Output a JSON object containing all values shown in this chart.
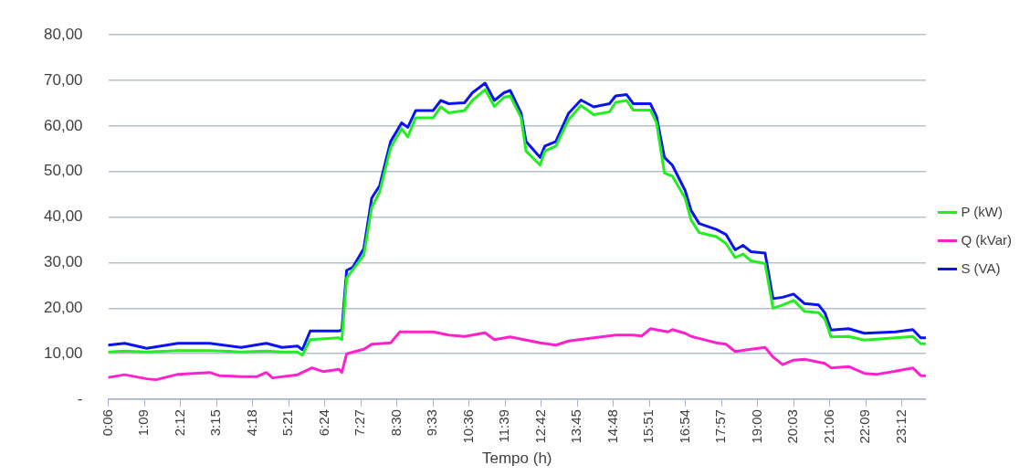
{
  "chart_data": {
    "type": "line",
    "xlabel": "Tempo (h)",
    "xlim": [
      0.1,
      23.9
    ],
    "xticks": [
      {
        "value": 0.1,
        "label": "0:06"
      },
      {
        "value": 1.15,
        "label": "1:09"
      },
      {
        "value": 2.2,
        "label": "2:12"
      },
      {
        "value": 3.25,
        "label": "3:15"
      },
      {
        "value": 4.3,
        "label": "4:18"
      },
      {
        "value": 5.35,
        "label": "5:21"
      },
      {
        "value": 6.4,
        "label": "6:24"
      },
      {
        "value": 7.45,
        "label": "7:27"
      },
      {
        "value": 8.5,
        "label": "8:30"
      },
      {
        "value": 9.55,
        "label": "9:33"
      },
      {
        "value": 10.6,
        "label": "10:36"
      },
      {
        "value": 11.65,
        "label": "11:39"
      },
      {
        "value": 12.7,
        "label": "12:42"
      },
      {
        "value": 13.75,
        "label": "13:45"
      },
      {
        "value": 14.8,
        "label": "14:48"
      },
      {
        "value": 15.85,
        "label": "15:51"
      },
      {
        "value": 16.9,
        "label": "16:54"
      },
      {
        "value": 17.95,
        "label": "17:57"
      },
      {
        "value": 19,
        "label": "19:00"
      },
      {
        "value": 20.05,
        "label": "20:03"
      },
      {
        "value": 21.1,
        "label": "21:06"
      },
      {
        "value": 22.15,
        "label": "22:09"
      },
      {
        "value": 23.2,
        "label": "23:12"
      }
    ],
    "ylim": [
      0,
      80
    ],
    "yticks": [
      {
        "value": 0,
        "label": "-"
      },
      {
        "value": 10,
        "label": "10,00"
      },
      {
        "value": 20,
        "label": "20,00"
      },
      {
        "value": 30,
        "label": "30,00"
      },
      {
        "value": 40,
        "label": "40,00"
      },
      {
        "value": 50,
        "label": "50,00"
      },
      {
        "value": 60,
        "label": "60,00"
      },
      {
        "value": 70,
        "label": "70,00"
      },
      {
        "value": 80,
        "label": "80,00"
      }
    ],
    "grid": "y",
    "legend": "right",
    "marker": "none",
    "line_style": "solid",
    "series": [
      {
        "name": "P (kW)",
        "color": "#22ee22",
        "x": [
          0.1,
          0.58,
          1.22,
          2.13,
          3.05,
          3.97,
          4.7,
          5.16,
          5.61,
          5.75,
          5.98,
          6.81,
          6.9,
          7.04,
          7.54,
          7.77,
          8.0,
          8.32,
          8.64,
          8.82,
          9.05,
          9.56,
          9.78,
          10.01,
          10.47,
          10.7,
          11.07,
          11.34,
          11.62,
          11.8,
          12.12,
          12.26,
          12.67,
          12.81,
          13.13,
          13.5,
          13.86,
          14.23,
          14.69,
          14.87,
          15.19,
          15.38,
          15.88,
          16.06,
          16.29,
          16.52,
          16.89,
          17.07,
          17.3,
          17.8,
          18.08,
          18.35,
          18.58,
          18.81,
          19.22,
          19.45,
          19.73,
          20.05,
          20.37,
          20.78,
          20.96,
          21.14,
          21.65,
          22.11,
          23.02,
          23.52,
          23.75,
          23.9
        ],
        "values": [
          10.4,
          10.6,
          10.4,
          10.7,
          10.7,
          10.4,
          10.6,
          10.4,
          10.4,
          9.7,
          13.1,
          13.5,
          13.1,
          26.6,
          31.7,
          42.1,
          45.5,
          55.2,
          59.4,
          57.6,
          61.8,
          61.8,
          64.2,
          62.9,
          63.4,
          65.6,
          68.0,
          64.3,
          66.3,
          66.6,
          61.8,
          54.5,
          51.4,
          54.5,
          55.6,
          61.4,
          64.5,
          62.5,
          63.1,
          65.2,
          65.6,
          63.5,
          63.5,
          60.7,
          49.7,
          49.0,
          44.2,
          39.3,
          36.6,
          35.7,
          34.2,
          31.1,
          31.9,
          30.4,
          29.8,
          20.0,
          20.7,
          21.7,
          19.3,
          19.0,
          17.6,
          13.7,
          13.8,
          13.0,
          13.5,
          13.8,
          12.2,
          12.2
        ]
      },
      {
        "name": "Q (kVar)",
        "color": "#ff22cc",
        "x": [
          0.1,
          0.58,
          1.22,
          1.49,
          2.13,
          3.05,
          3.33,
          3.97,
          4.43,
          4.7,
          4.88,
          5.61,
          6.03,
          6.35,
          6.81,
          6.9,
          7.04,
          7.54,
          7.77,
          8.32,
          8.59,
          9.56,
          10.01,
          10.47,
          11.07,
          11.34,
          11.8,
          12.67,
          13.13,
          13.5,
          14.23,
          14.87,
          15.38,
          15.63,
          15.88,
          16.4,
          16.52,
          16.89,
          17.07,
          17.8,
          18.08,
          18.35,
          18.81,
          19.22,
          19.45,
          19.73,
          20.05,
          20.37,
          20.96,
          21.14,
          21.65,
          22.11,
          22.48,
          23.02,
          23.52,
          23.75,
          23.9
        ],
        "values": [
          4.8,
          5.4,
          4.5,
          4.3,
          5.5,
          5.9,
          5.2,
          5.0,
          5.0,
          5.9,
          4.7,
          5.4,
          6.9,
          6.1,
          6.6,
          5.9,
          10.0,
          11.0,
          12.1,
          12.4,
          14.8,
          14.8,
          14.1,
          13.8,
          14.6,
          13.1,
          13.7,
          12.4,
          11.9,
          12.8,
          13.5,
          14.1,
          14.1,
          13.9,
          15.5,
          14.8,
          15.3,
          14.5,
          13.8,
          12.4,
          12.1,
          10.5,
          11.0,
          11.4,
          9.3,
          7.6,
          8.6,
          8.8,
          7.9,
          6.9,
          7.2,
          5.7,
          5.5,
          6.2,
          6.9,
          5.2,
          5.2
        ]
      },
      {
        "name": "S (VA)",
        "color": "#0a14f0",
        "x": [
          0.1,
          0.58,
          1.22,
          2.13,
          3.05,
          3.97,
          4.7,
          5.16,
          5.61,
          5.75,
          5.98,
          6.81,
          6.9,
          7.04,
          7.22,
          7.54,
          7.77,
          8.0,
          8.32,
          8.64,
          8.82,
          9.05,
          9.56,
          9.78,
          10.01,
          10.47,
          10.7,
          11.07,
          11.34,
          11.62,
          11.8,
          12.12,
          12.26,
          12.67,
          12.81,
          13.13,
          13.5,
          13.86,
          14.23,
          14.69,
          14.87,
          15.19,
          15.38,
          15.88,
          16.06,
          16.29,
          16.52,
          16.89,
          17.07,
          17.3,
          17.8,
          18.08,
          18.35,
          18.58,
          18.81,
          19.22,
          19.45,
          19.73,
          20.05,
          20.37,
          20.78,
          20.96,
          21.14,
          21.65,
          22.11,
          23.02,
          23.52,
          23.75,
          23.9
        ],
        "values": [
          11.9,
          12.3,
          11.2,
          12.3,
          12.3,
          11.4,
          12.3,
          11.4,
          11.7,
          10.9,
          15.0,
          15.0,
          15.2,
          28.3,
          29.0,
          33.1,
          44.2,
          46.9,
          56.6,
          60.7,
          59.7,
          63.4,
          63.4,
          65.6,
          64.9,
          65.1,
          67.3,
          69.4,
          65.6,
          67.3,
          67.8,
          62.8,
          56.6,
          53.1,
          55.6,
          56.6,
          62.8,
          65.7,
          64.2,
          64.9,
          66.6,
          66.9,
          64.9,
          64.9,
          62.1,
          53.1,
          51.4,
          45.9,
          41.4,
          38.6,
          37.3,
          36.2,
          32.8,
          33.8,
          32.4,
          32.1,
          22.1,
          22.4,
          23.1,
          21.0,
          20.7,
          19.0,
          15.2,
          15.5,
          14.5,
          14.8,
          15.3,
          13.5,
          13.5
        ]
      }
    ]
  }
}
